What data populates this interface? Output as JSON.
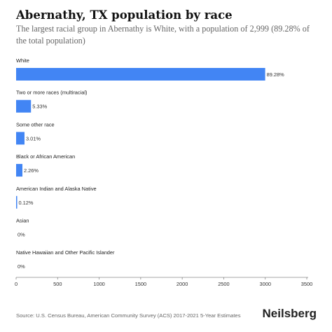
{
  "title": "Abernathy, TX population by race",
  "subtitle": "The largest racial group in Abernathy is White, with a population of 2,999 (89.28% of the total population)",
  "source": "Source: U.S. Census Bureau, American Community Survey (ACS) 2017-2021 5-Year Estimates",
  "brand": "Neilsberg",
  "colors": {
    "bar": "#4285F4",
    "axis": "#666666",
    "text": "#222222"
  },
  "chart_data": {
    "type": "bar",
    "orientation": "horizontal",
    "categories": [
      "White",
      "Two or more races (multiracial)",
      "Some other race",
      "Black or African American",
      "American Indian and Alaska Native",
      "Asian",
      "Native Hawaiian and Other Pacific Islander"
    ],
    "values": [
      2999,
      179,
      101,
      76,
      4,
      0,
      0
    ],
    "value_labels": [
      "89.28%",
      "5.33%",
      "3.01%",
      "2.26%",
      "0.12%",
      "0%",
      "0%"
    ],
    "xlim": [
      0,
      3500
    ],
    "xticks": [
      "0",
      "500",
      "1000",
      "1500",
      "2000",
      "2500",
      "3000",
      "3500"
    ],
    "grid": false
  }
}
